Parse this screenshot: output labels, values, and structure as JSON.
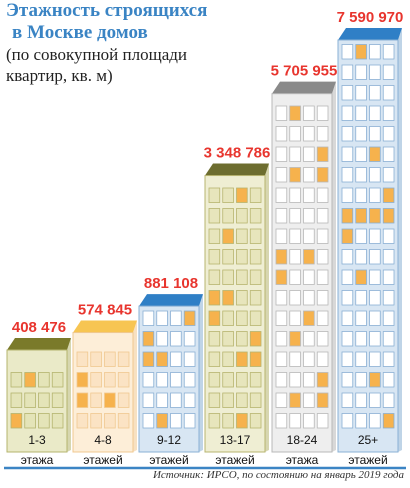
{
  "title": {
    "line1": "Этажность строящихся",
    "line2": "в Москве домов"
  },
  "subtitle": {
    "line1": "(по совокупной площади",
    "line2": "квартир, кв. м)"
  },
  "source": "Источник: ИРСО, по состоянию на январь 2019 года",
  "colors": {
    "title": "#3a84c4",
    "value_label": "#e8352e",
    "baseline": "#3b84c4",
    "window_accent": "#f6b24d"
  },
  "chart_data": {
    "type": "bar",
    "title": "Этажность строящихся в Москве домов",
    "subtitle": "(по совокупной площади квартир, кв. м)",
    "categories": [
      "1-3",
      "4-8",
      "9-12",
      "13-17",
      "18-24",
      "25+"
    ],
    "category_sublabels": [
      "этажа",
      "этажей",
      "этажей",
      "этажей",
      "этажа",
      "этажей"
    ],
    "values": [
      408476,
      574845,
      881108,
      3348786,
      5705955,
      7590970
    ],
    "value_labels": [
      "408 476",
      "574 845",
      "881 108",
      "3 348 786",
      "5 705 955",
      "7 590 970"
    ],
    "building_styles": [
      {
        "roof": "#7a7a2a",
        "facade": "#eaeac8",
        "frame": "#b4b46e",
        "window": "#e4e4b8"
      },
      {
        "roof": "#f7c552",
        "facade": "#fdeed8",
        "frame": "#f0c890",
        "window": "#fbe3c4"
      },
      {
        "roof": "#2f7fc6",
        "facade": "#d8e6f3",
        "frame": "#8ab0d4",
        "window": "#ffffff"
      },
      {
        "roof": "#6d6d2f",
        "facade": "#efeed3",
        "frame": "#b7b46f",
        "window": "#e7e5bc"
      },
      {
        "roof": "#8a8a8a",
        "facade": "#eeeeee",
        "frame": "#b8b8b8",
        "window": "#ffffff"
      },
      {
        "roof": "#2f7fc6",
        "facade": "#d8e6f3",
        "frame": "#8ab0d4",
        "window": "#ffffff"
      }
    ],
    "legend": "none",
    "grid": false
  }
}
